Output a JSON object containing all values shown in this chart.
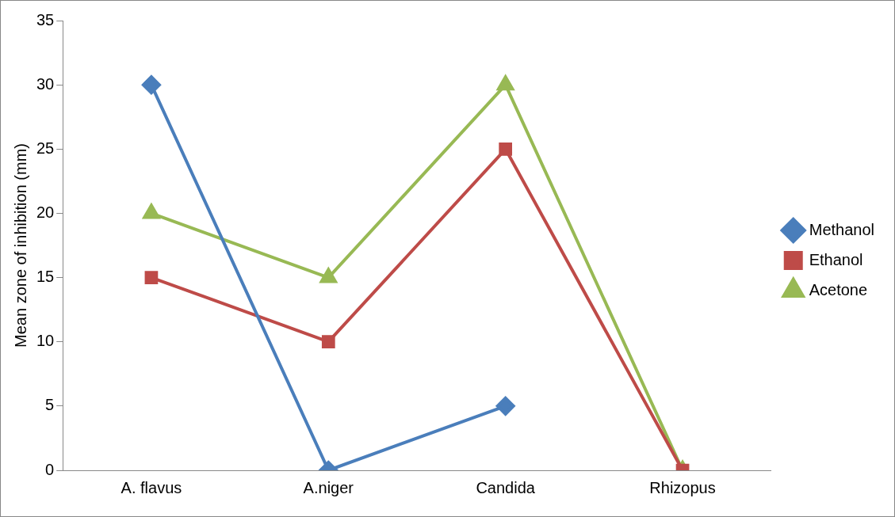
{
  "chart_data": {
    "type": "line",
    "ylabel": "Mean zone of inhibition (mm)",
    "categories": [
      "A. flavus",
      "A.niger",
      "Candida",
      "Rhizopus"
    ],
    "series": [
      {
        "name": "Methanol",
        "color": "#4a7ebb",
        "values": [
          30,
          0,
          5,
          null
        ],
        "marker": "diamond"
      },
      {
        "name": "Ethanol",
        "color": "#be4b48",
        "values": [
          15,
          10,
          25,
          0
        ],
        "marker": "square"
      },
      {
        "name": "Acetone",
        "color": "#98b954",
        "values": [
          20,
          15,
          30,
          0
        ],
        "marker": "triangle"
      }
    ],
    "ylim": [
      0,
      35
    ],
    "yticks": [
      0,
      5,
      10,
      15,
      20,
      25,
      30,
      35
    ],
    "grid": false,
    "legend": "right",
    "line_style": "solid"
  }
}
